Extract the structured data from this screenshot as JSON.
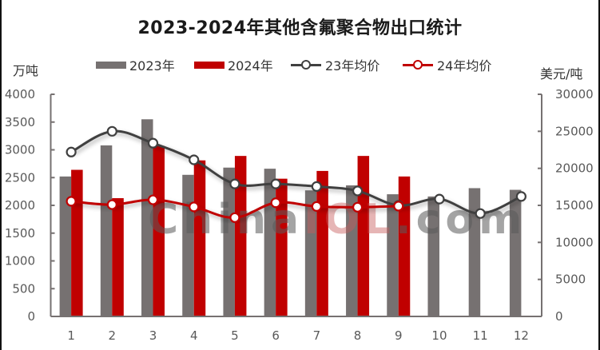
{
  "title": "2023-2024年其他含氟聚合物出口统计",
  "units": {
    "left": "万吨",
    "right": "美元/吨"
  },
  "legend": [
    {
      "label": "2023年",
      "type": "bar",
      "color": "#767171"
    },
    {
      "label": "2024年",
      "type": "bar",
      "color": "#C00000"
    },
    {
      "label": "23年均价",
      "type": "line",
      "color": "#404040"
    },
    {
      "label": "24年均价",
      "type": "line",
      "color": "#C00000"
    }
  ],
  "watermark": {
    "prefix": "China",
    "mid": "IOL",
    "suffix": ".com"
  },
  "chart_data": {
    "type": "bar+line",
    "title": "2023-2024年其他含氟聚合物出口统计",
    "xlabel": "",
    "ylabel": "万吨",
    "y2label": "美元/吨",
    "categories": [
      "1",
      "2",
      "3",
      "4",
      "5",
      "6",
      "7",
      "8",
      "9",
      "10",
      "11",
      "12"
    ],
    "ylim": [
      0,
      4000
    ],
    "yticks": [
      0,
      500,
      1000,
      1500,
      2000,
      2500,
      3000,
      3500,
      4000
    ],
    "y2lim": [
      0,
      30000
    ],
    "y2ticks": [
      0,
      5000,
      10000,
      15000,
      20000,
      25000,
      30000
    ],
    "grid": false,
    "legend_position": "top",
    "series": [
      {
        "name": "2023年",
        "type": "bar",
        "axis": "left",
        "color": "#767171",
        "values": [
          2520,
          3080,
          3550,
          2550,
          2680,
          2660,
          2270,
          2360,
          2200,
          2160,
          2310,
          2280
        ]
      },
      {
        "name": "2024年",
        "type": "bar",
        "axis": "left",
        "color": "#C00000",
        "values": [
          2640,
          2130,
          3070,
          2810,
          2890,
          2480,
          2620,
          2890,
          2520,
          null,
          null,
          null
        ]
      },
      {
        "name": "23年均价",
        "type": "line",
        "axis": "right",
        "color": "#404040",
        "smooth": true,
        "values": [
          22200,
          25000,
          23400,
          21150,
          17900,
          17900,
          17550,
          16950,
          15000,
          15850,
          13900,
          16200
        ]
      },
      {
        "name": "24年均价",
        "type": "line",
        "axis": "right",
        "color": "#C00000",
        "smooth": true,
        "values": [
          15550,
          15100,
          15750,
          14800,
          13350,
          15350,
          14850,
          14750,
          14900,
          null,
          null,
          null
        ]
      }
    ]
  }
}
